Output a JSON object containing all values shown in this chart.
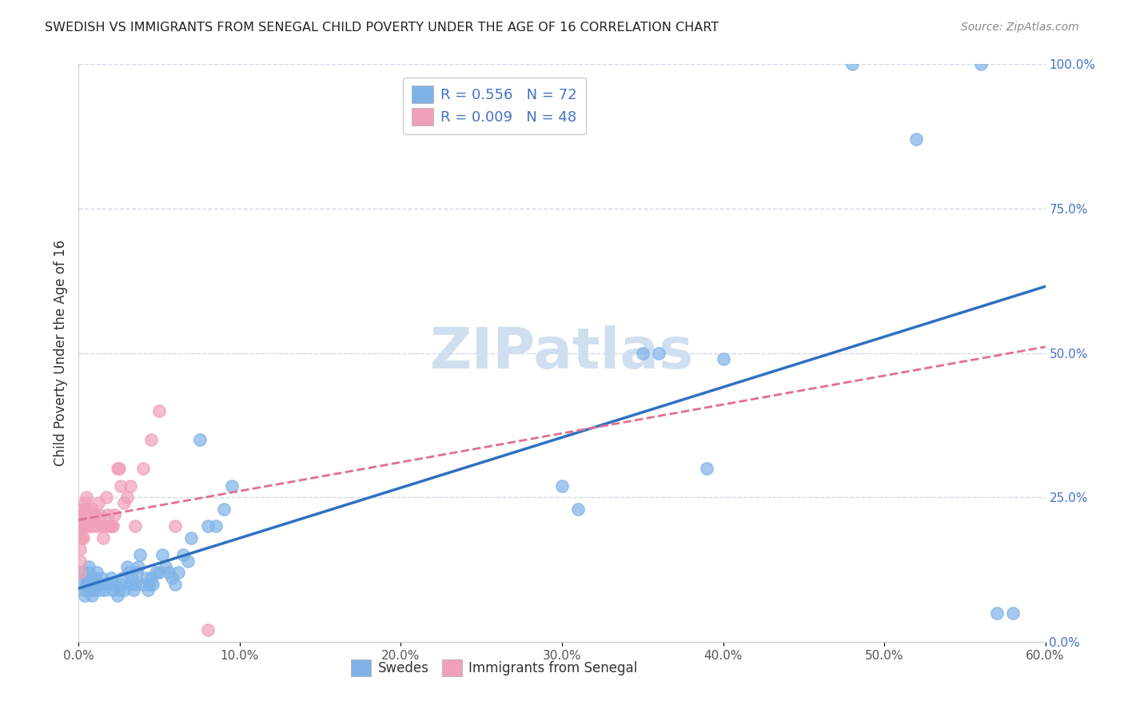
{
  "title": "SWEDISH VS IMMIGRANTS FROM SENEGAL CHILD POVERTY UNDER THE AGE OF 16 CORRELATION CHART",
  "source": "Source: ZipAtlas.com",
  "xlabel": "",
  "ylabel": "Child Poverty Under the Age of 16",
  "xlim": [
    0.0,
    0.6
  ],
  "ylim": [
    0.0,
    1.0
  ],
  "xticks": [
    0.0,
    0.1,
    0.2,
    0.3,
    0.4,
    0.5,
    0.6
  ],
  "xtick_labels": [
    "0.0%",
    "10.0%",
    "20.0%",
    "30.0%",
    "40.0%",
    "50.0%",
    "60.0%"
  ],
  "yticks_left": [],
  "yticks_right": [
    0.0,
    0.25,
    0.5,
    0.75,
    1.0
  ],
  "ytick_labels_right": [
    "0.0%",
    "25.0%",
    "50.0%",
    "75.0%",
    "100.0%"
  ],
  "legend_entries": [
    {
      "label": "R = 0.556   N = 72",
      "color": "#a8c8f0"
    },
    {
      "label": "R = 0.009   N = 48",
      "color": "#f0a8b8"
    }
  ],
  "swedes_color": "#7fb3e8",
  "senegal_color": "#f0a0b8",
  "trend_swedes_color": "#3070c0",
  "trend_senegal_color": "#e07090",
  "watermark": "ZIPatlas",
  "watermark_color": "#d0dff0",
  "background_color": "#ffffff",
  "grid_color": "#d0d8e8",
  "swedes_x": [
    0.002,
    0.003,
    0.004,
    0.004,
    0.005,
    0.005,
    0.006,
    0.006,
    0.007,
    0.007,
    0.008,
    0.008,
    0.009,
    0.01,
    0.01,
    0.011,
    0.012,
    0.013,
    0.014,
    0.015,
    0.016,
    0.018,
    0.02,
    0.021,
    0.022,
    0.024,
    0.025,
    0.026,
    0.027,
    0.028,
    0.03,
    0.031,
    0.032,
    0.033,
    0.034,
    0.035,
    0.036,
    0.037,
    0.038,
    0.04,
    0.042,
    0.043,
    0.044,
    0.045,
    0.046,
    0.048,
    0.05,
    0.052,
    0.054,
    0.056,
    0.058,
    0.06,
    0.062,
    0.065,
    0.068,
    0.07,
    0.075,
    0.08,
    0.085,
    0.09,
    0.095,
    0.3,
    0.31,
    0.35,
    0.36,
    0.39,
    0.4,
    0.48,
    0.52,
    0.56,
    0.57,
    0.58
  ],
  "swedes_y": [
    0.12,
    0.1,
    0.08,
    0.09,
    0.11,
    0.1,
    0.13,
    0.12,
    0.1,
    0.09,
    0.08,
    0.1,
    0.09,
    0.1,
    0.11,
    0.12,
    0.1,
    0.09,
    0.11,
    0.1,
    0.09,
    0.1,
    0.11,
    0.09,
    0.1,
    0.08,
    0.09,
    0.1,
    0.11,
    0.09,
    0.13,
    0.12,
    0.1,
    0.11,
    0.09,
    0.1,
    0.12,
    0.13,
    0.15,
    0.1,
    0.11,
    0.09,
    0.1,
    0.11,
    0.1,
    0.12,
    0.12,
    0.15,
    0.13,
    0.12,
    0.11,
    0.1,
    0.12,
    0.15,
    0.14,
    0.18,
    0.35,
    0.2,
    0.2,
    0.23,
    0.27,
    0.27,
    0.23,
    0.5,
    0.5,
    0.3,
    0.49,
    1.0,
    0.87,
    1.0,
    0.05,
    0.05
  ],
  "senegal_x": [
    0.001,
    0.001,
    0.001,
    0.001,
    0.001,
    0.001,
    0.002,
    0.002,
    0.002,
    0.003,
    0.003,
    0.003,
    0.004,
    0.004,
    0.005,
    0.005,
    0.005,
    0.006,
    0.006,
    0.007,
    0.008,
    0.008,
    0.009,
    0.01,
    0.011,
    0.012,
    0.013,
    0.014,
    0.015,
    0.016,
    0.017,
    0.018,
    0.019,
    0.02,
    0.021,
    0.022,
    0.024,
    0.025,
    0.026,
    0.028,
    0.03,
    0.032,
    0.035,
    0.04,
    0.045,
    0.05,
    0.06,
    0.08
  ],
  "senegal_y": [
    0.22,
    0.2,
    0.18,
    0.16,
    0.14,
    0.12,
    0.23,
    0.2,
    0.18,
    0.22,
    0.2,
    0.18,
    0.24,
    0.22,
    0.25,
    0.23,
    0.2,
    0.22,
    0.2,
    0.22,
    0.23,
    0.2,
    0.22,
    0.22,
    0.2,
    0.24,
    0.22,
    0.2,
    0.18,
    0.2,
    0.25,
    0.22,
    0.2,
    0.2,
    0.2,
    0.22,
    0.3,
    0.3,
    0.27,
    0.24,
    0.25,
    0.27,
    0.2,
    0.3,
    0.35,
    0.4,
    0.2,
    0.02
  ]
}
